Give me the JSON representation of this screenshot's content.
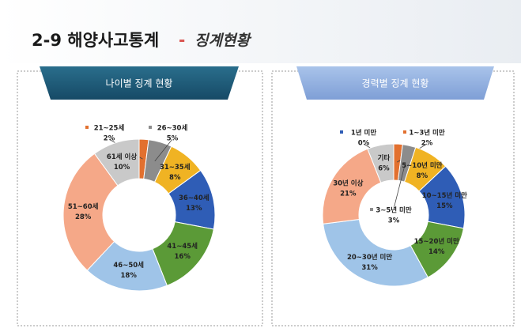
{
  "header": {
    "title": "2-9 해양사고통계",
    "separator": "-",
    "subtitle": "징계현황"
  },
  "chart_data": [
    {
      "type": "pie",
      "donut": true,
      "title": "나이별 징계 현황",
      "categories": [
        "21~25세",
        "26~30세",
        "31~35세",
        "36~40세",
        "41~45세",
        "46~50세",
        "51~60세",
        "61세 이상"
      ],
      "values": [
        2,
        5,
        8,
        13,
        16,
        18,
        28,
        10
      ],
      "value_labels": [
        "2%",
        "5%",
        "8%",
        "13%",
        "16%",
        "18%",
        "28%",
        "10%"
      ],
      "colors": [
        "#e2702f",
        "#8c8c8c",
        "#f0b323",
        "#2f5db6",
        "#5b9a37",
        "#9fc4e8",
        "#f5a888",
        "#c9c9c9"
      ]
    },
    {
      "type": "pie",
      "donut": true,
      "title": "경력별 징계 현황",
      "categories": [
        "1년 미만",
        "1~3년 미만",
        "3~5년 미만",
        "5~10년 미만",
        "10~15년 미만",
        "15~20년 미만",
        "20~30년 미만",
        "30년 이상",
        "기타"
      ],
      "values": [
        0,
        2,
        3,
        8,
        15,
        14,
        31,
        21,
        6
      ],
      "value_labels": [
        "0%",
        "2%",
        "3%",
        "8%",
        "15%",
        "14%",
        "31%",
        "21%",
        "6%"
      ],
      "colors": [
        "#2f5db6",
        "#e2702f",
        "#8c8c8c",
        "#f0b323",
        "#2f5db6",
        "#5b9a37",
        "#9fc4e8",
        "#f5a888",
        "#c9c9c9"
      ]
    }
  ]
}
